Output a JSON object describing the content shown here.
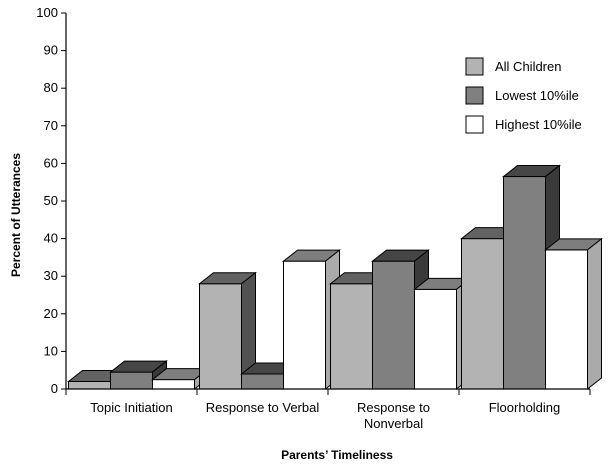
{
  "chart_data": {
    "type": "bar",
    "title": "",
    "xlabel": "Parents’ Timeliness",
    "ylabel": "Percent of Utterances",
    "ylim": [
      0,
      100
    ],
    "yticks": [
      0,
      10,
      20,
      30,
      40,
      50,
      60,
      70,
      80,
      90,
      100
    ],
    "categories": [
      "Topic Initiation",
      "Response to Verbal",
      "Response to\nNonverbal",
      "Floorholding"
    ],
    "series": [
      {
        "name": "All Children",
        "values": [
          2,
          28,
          28,
          40
        ],
        "color": "#b3b3b3"
      },
      {
        "name": "Lowest 10%ile",
        "values": [
          4.5,
          4,
          34,
          56.5
        ],
        "color": "#808080"
      },
      {
        "name": "Highest 10%ile",
        "values": [
          2.5,
          34,
          26.5,
          37
        ],
        "color": "#ffffff"
      }
    ],
    "legend_position": "top-right",
    "grid": false,
    "style": "3d-bars"
  }
}
